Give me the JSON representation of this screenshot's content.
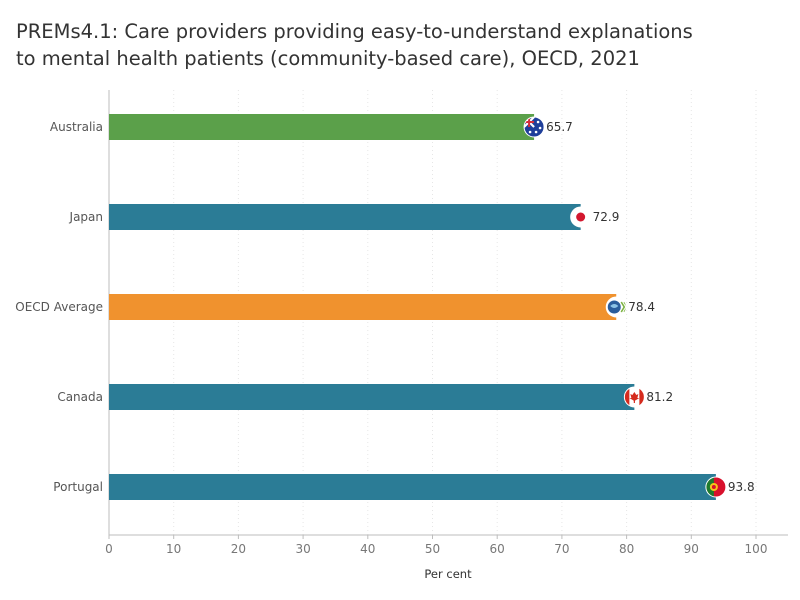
{
  "chart_data": {
    "type": "bar",
    "orientation": "horizontal",
    "title": "PREMs4.1: Care providers providing easy-to-understand explanations to mental health patients (community-based care), OECD, 2021",
    "title_lines": [
      "PREMs4.1: Care providers providing easy-to-understand explanations",
      "to mental health patients (community-based care), OECD, 2021"
    ],
    "xlabel": "Per cent",
    "ylabel": "",
    "xlim": [
      0,
      100
    ],
    "ticks": [
      0,
      10,
      20,
      30,
      40,
      50,
      60,
      70,
      80,
      90,
      100
    ],
    "tick_labels": [
      "0",
      "10",
      "20",
      "30",
      "40",
      "50",
      "60",
      "70",
      "80",
      "90",
      "100"
    ],
    "grid": true,
    "legend": false,
    "categories": [
      "Australia",
      "Japan",
      "OECD Average",
      "Canada",
      "Portugal"
    ],
    "values": [
      65.7,
      72.9,
      78.4,
      81.2,
      93.8
    ],
    "value_labels": [
      "65.7",
      "72.9",
      "78.4",
      "81.2",
      "93.8"
    ],
    "colors": [
      "#5ba04a",
      "#2b7c96",
      "#f0922e",
      "#2b7c96",
      "#2b7c96"
    ],
    "flag_icons": [
      "australia-flag-icon",
      "japan-flag-icon",
      "oecd-logo-icon",
      "canada-flag-icon",
      "portugal-flag-icon"
    ]
  }
}
